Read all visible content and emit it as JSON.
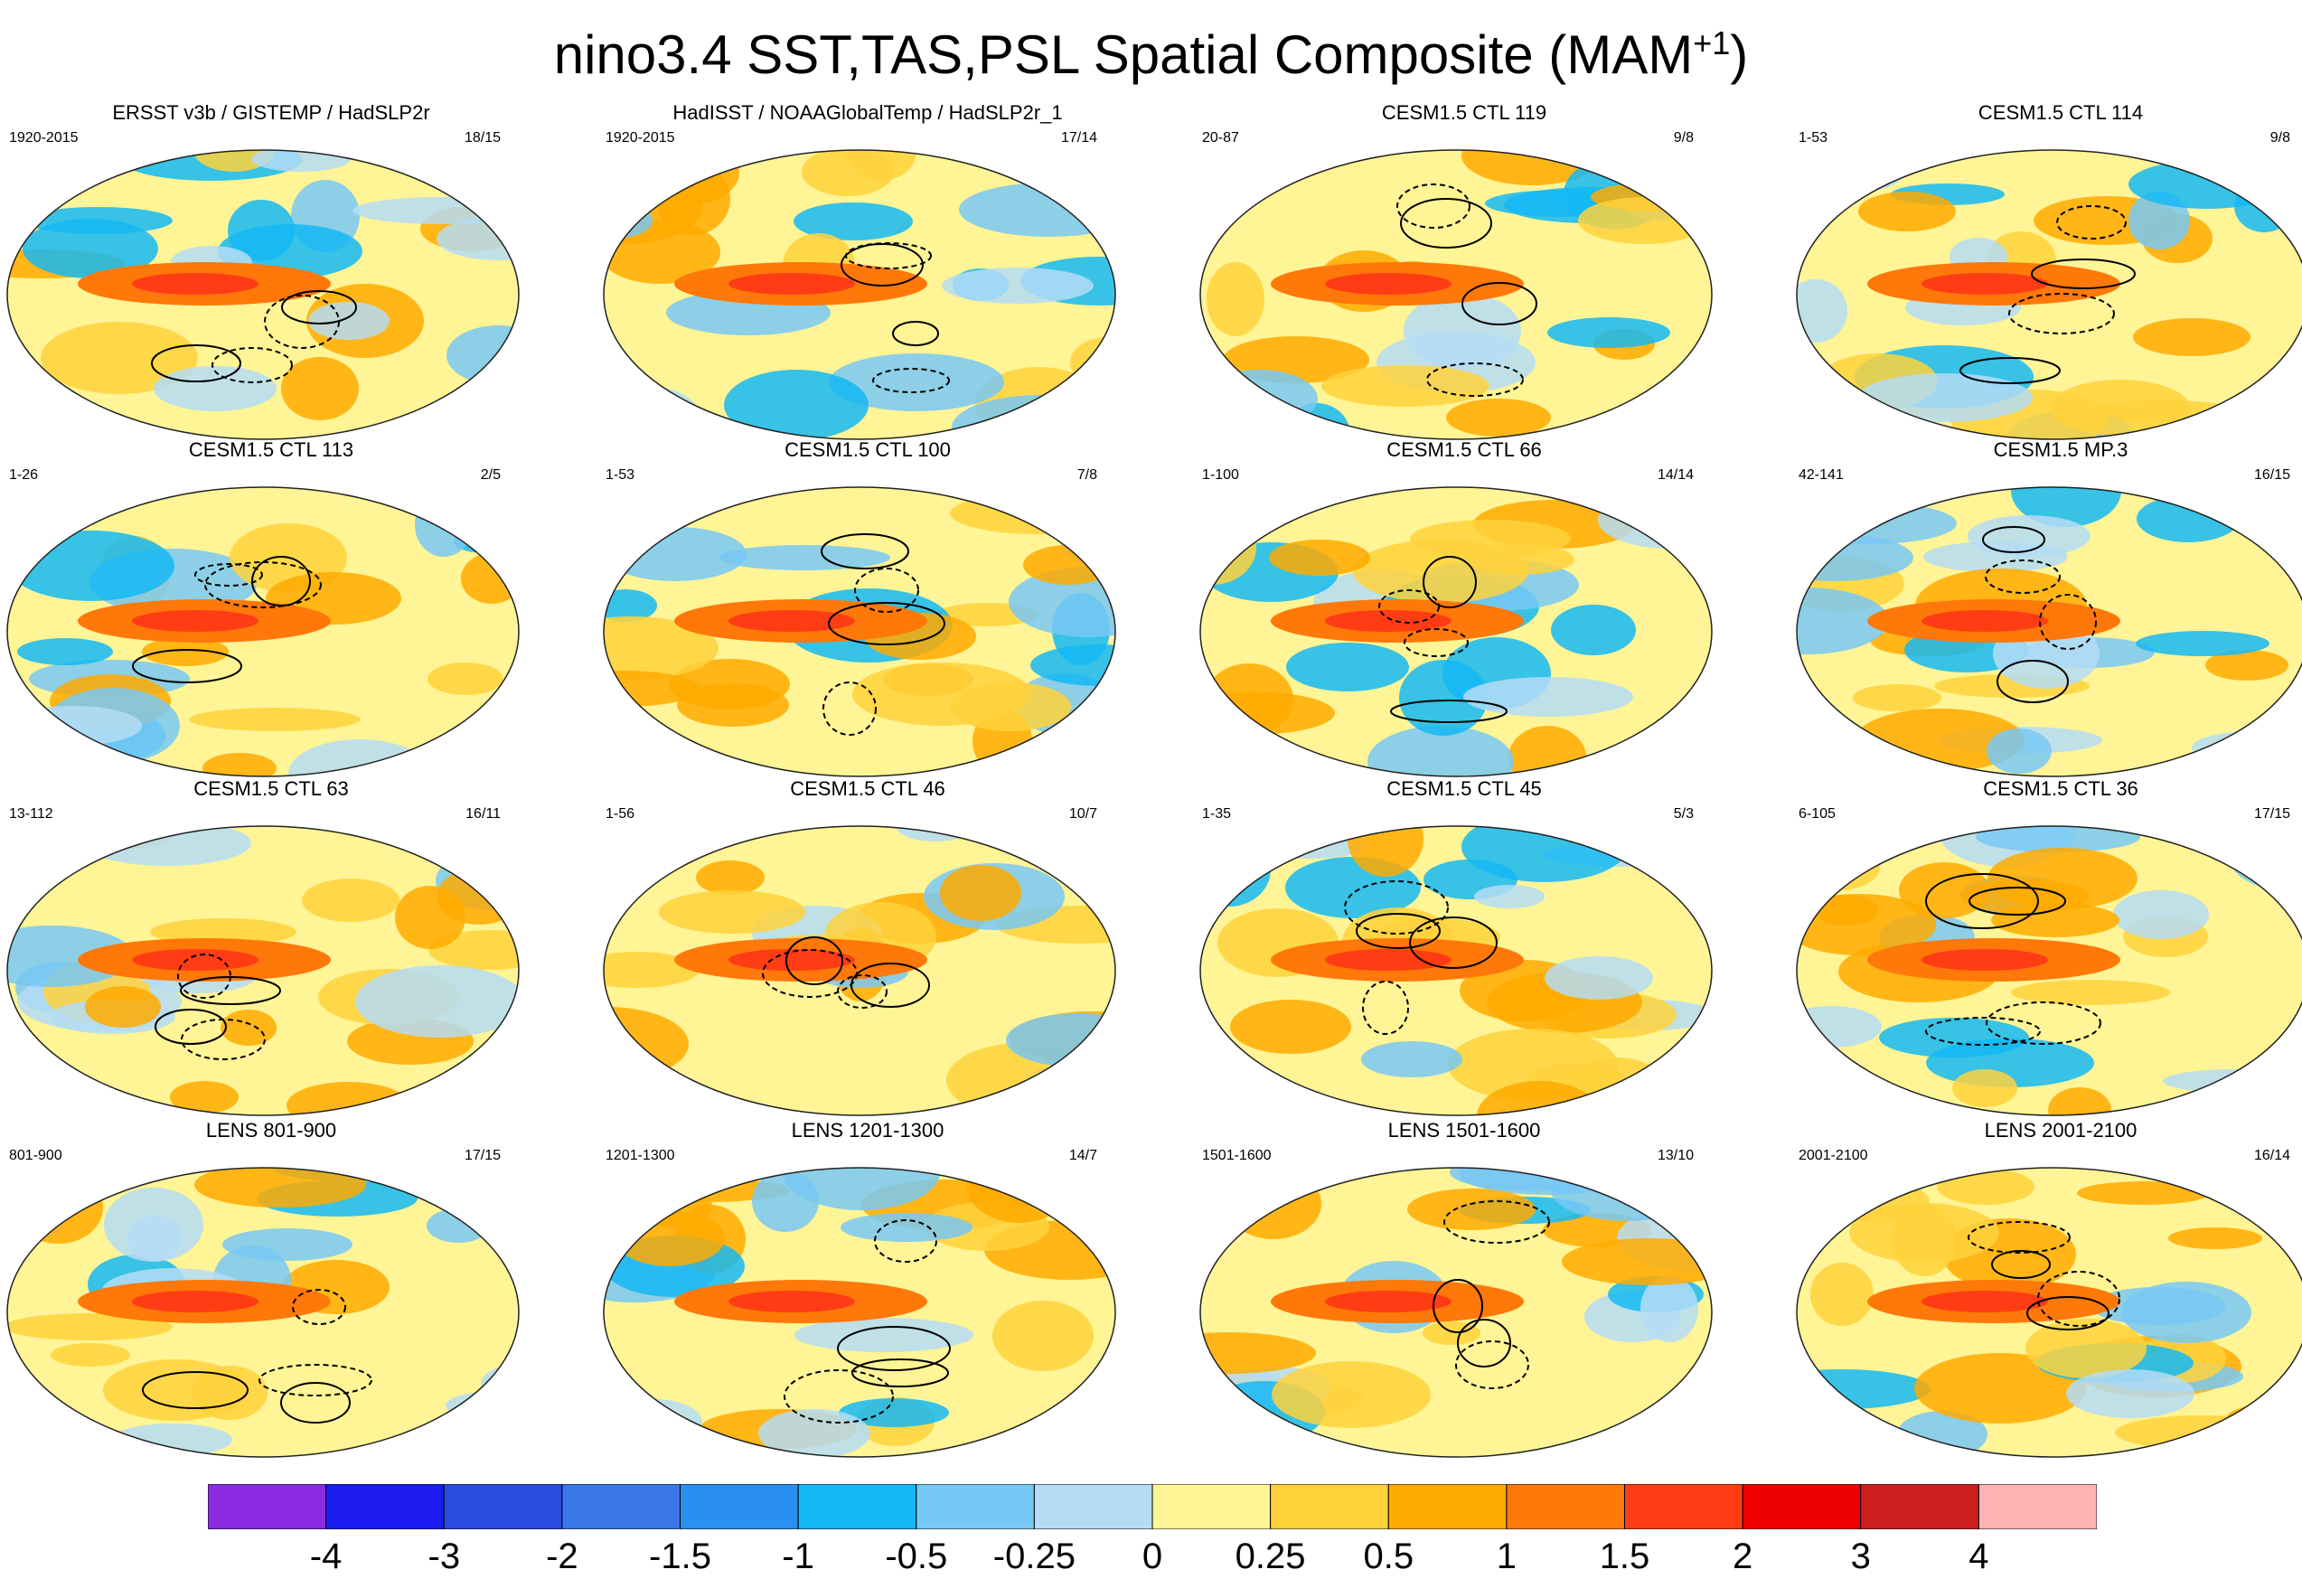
{
  "chart_data": {
    "type": "heatmap",
    "title_main": "nino3.4 SST,TAS,PSL Spatial Composite (MAM",
    "title_sup": "+1",
    "title_close": ")",
    "colorbar": {
      "boundaries": [
        "-4",
        "-3",
        "-2",
        "-1.5",
        "-1",
        "-0.5",
        "-0.25",
        "0",
        "0.25",
        "0.5",
        "1",
        "1.5",
        "2",
        "3",
        "4"
      ],
      "colors": [
        "#8a2be2",
        "#1c1cf0",
        "#2b4ce0",
        "#3a78e8",
        "#2a90f0",
        "#14b8f5",
        "#78c8f5",
        "#b4dcf5",
        "#fff496",
        "#ffd23c",
        "#ffaa00",
        "#ff780a",
        "#ff3c14",
        "#ee0000",
        "#cd1e1e",
        "#ffb4b4"
      ]
    },
    "panels": [
      {
        "title": "ERSST v3b / GISTEMP / HadSLP2r",
        "years": "1920-2015",
        "count": "18/15"
      },
      {
        "title": "HadISST / NOAAGlobalTemp / HadSLP2r_1",
        "years": "1920-2015",
        "count": "17/14"
      },
      {
        "title": "CESM1.5 CTL 119",
        "years": "20-87",
        "count": "9/8"
      },
      {
        "title": "CESM1.5 CTL 114",
        "years": "1-53",
        "count": "9/8"
      },
      {
        "title": "CESM1.5 CTL 113",
        "years": "1-26",
        "count": "2/5"
      },
      {
        "title": "CESM1.5 CTL 100",
        "years": "1-53",
        "count": "7/8"
      },
      {
        "title": "CESM1.5 CTL 66",
        "years": "1-100",
        "count": "14/14"
      },
      {
        "title": "CESM1.5 MP.3",
        "years": "42-141",
        "count": "16/15"
      },
      {
        "title": "CESM1.5 CTL 63",
        "years": "13-112",
        "count": "16/11"
      },
      {
        "title": "CESM1.5 CTL 46",
        "years": "1-56",
        "count": "10/7"
      },
      {
        "title": "CESM1.5 CTL 45",
        "years": "1-35",
        "count": "5/3"
      },
      {
        "title": "CESM1.5 CTL 36",
        "years": "6-105",
        "count": "17/15"
      },
      {
        "title": "LENS 801-900",
        "years": "801-900",
        "count": "17/15"
      },
      {
        "title": "LENS 1201-1300",
        "years": "1201-1300",
        "count": "14/7"
      },
      {
        "title": "LENS 1501-1600",
        "years": "1501-1600",
        "count": "13/10"
      },
      {
        "title": "LENS 2001-2100",
        "years": "2001-2100",
        "count": "16/14"
      }
    ]
  }
}
